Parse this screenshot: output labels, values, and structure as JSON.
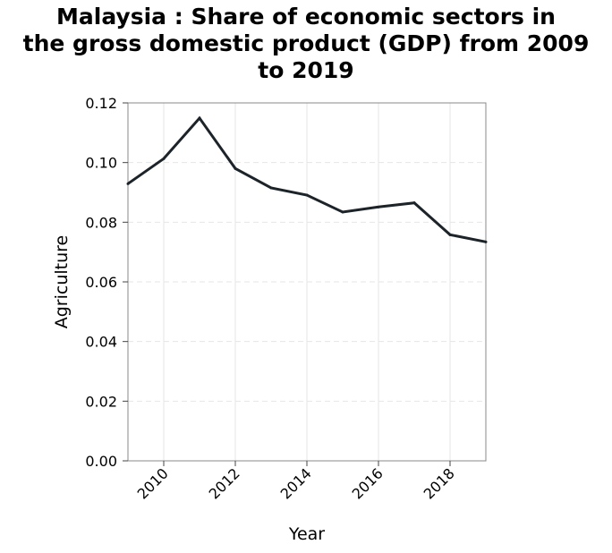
{
  "chart_data": {
    "type": "line",
    "title_lines": [
      "Malaysia : Share of economic sectors in",
      "the gross domestic product (GDP) from 2009",
      "to 2019"
    ],
    "xlabel": "Year",
    "ylabel": "Agriculture",
    "x": [
      2009,
      2010,
      2011,
      2012,
      2013,
      2014,
      2015,
      2016,
      2017,
      2018,
      2019
    ],
    "series": [
      {
        "values": [
          0.0929,
          0.1013,
          0.1149,
          0.098,
          0.0915,
          0.0891,
          0.0834,
          0.0851,
          0.0865,
          0.0758,
          0.0734
        ]
      }
    ],
    "xlim": [
      2009,
      2019
    ],
    "ylim": [
      0,
      0.12
    ],
    "x_ticks": [
      "2010",
      "2012",
      "2014",
      "2016",
      "2018"
    ],
    "x_tick_values": [
      2010,
      2012,
      2014,
      2016,
      2018
    ],
    "y_ticks": [
      "0.00",
      "0.02",
      "0.04",
      "0.06",
      "0.08",
      "0.10",
      "0.12"
    ],
    "y_tick_values": [
      0,
      0.02,
      0.04,
      0.06,
      0.08,
      0.1,
      0.12
    ],
    "grid": true,
    "line_color": "#1c2329",
    "grid_color": "#e6e6e6"
  }
}
